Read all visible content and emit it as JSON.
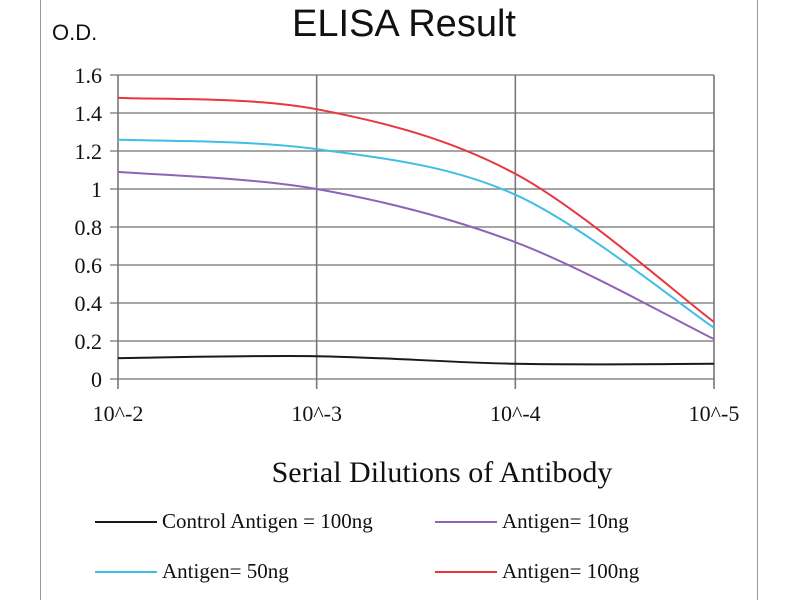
{
  "chart_data": {
    "type": "line",
    "title": "ELISA Result",
    "ylabel": "O.D.",
    "xlabel": "Serial Dilutions  of Antibody",
    "categories": [
      "10^-2",
      "10^-3",
      "10^-4",
      "10^-5"
    ],
    "ylim": [
      0,
      1.6
    ],
    "yticks": [
      "0",
      "0.2",
      "0.4",
      "0.6",
      "0.8",
      "1",
      "1.2",
      "1.4",
      "1.6"
    ],
    "grid": true,
    "legend_placement": "bottom",
    "series": [
      {
        "name": "Control Antigen = 100ng",
        "color": "#1a1a1a",
        "values": [
          0.11,
          0.12,
          0.08,
          0.08
        ]
      },
      {
        "name": "Antigen= 10ng",
        "color": "#8e63b8",
        "values": [
          1.09,
          1.0,
          0.72,
          0.21
        ]
      },
      {
        "name": "Antigen= 50ng",
        "color": "#3ec0e6",
        "values": [
          1.26,
          1.21,
          0.97,
          0.27
        ]
      },
      {
        "name": "Antigen= 100ng",
        "color": "#e8383d",
        "values": [
          1.48,
          1.42,
          1.08,
          0.3
        ]
      }
    ]
  }
}
